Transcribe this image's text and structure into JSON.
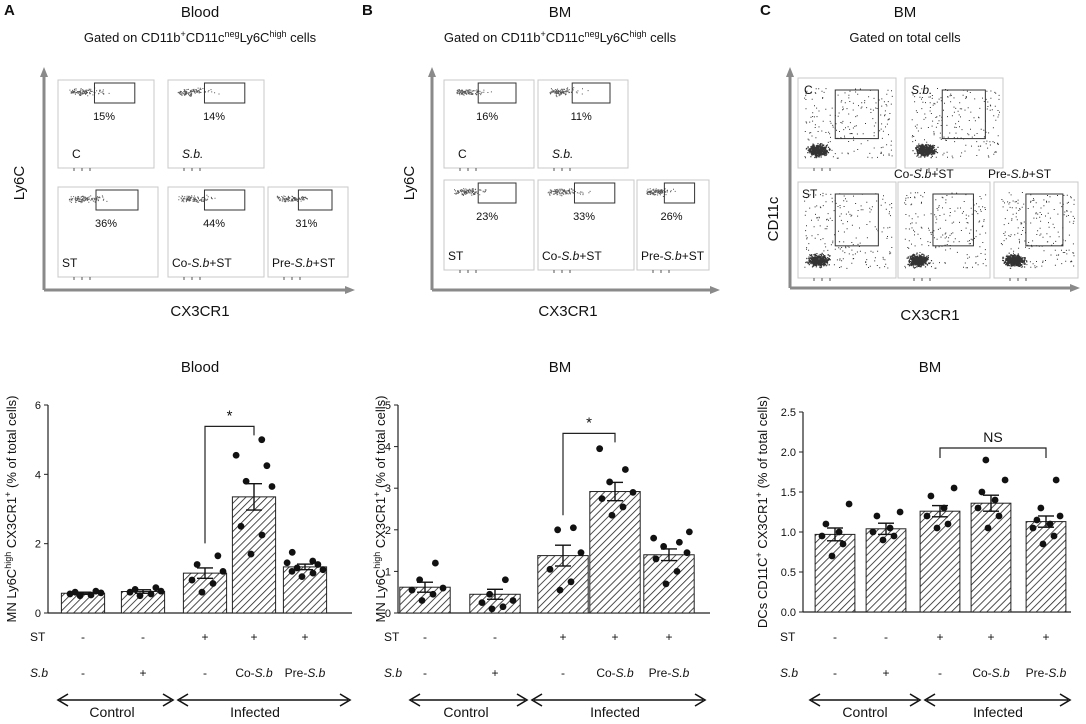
{
  "figure": {
    "panels": [
      {
        "letter": "A",
        "tissue": "Blood",
        "gating": {
          "pre": "Gated on CD11b",
          "sup1": "+",
          "mid": "CD11c",
          "sup2": "neg",
          "mid2": "Ly6C",
          "sup3": "high",
          "post": " cells"
        },
        "y_marker": "Ly6C",
        "x_marker": "CX3CR1",
        "plots": [
          {
            "label": "C",
            "label_style": "normal",
            "pct": "15%"
          },
          {
            "label": "S.b.",
            "label_style": "italic",
            "pct": "14%"
          },
          {
            "label": "ST",
            "label_style": "normal",
            "pct": "36%"
          },
          {
            "label_parts": [
              "Co-",
              "S.b",
              "+ST"
            ],
            "pct": "44%"
          },
          {
            "label_parts": [
              "Pre-",
              "S.b",
              "+ST"
            ],
            "pct": "31%"
          }
        ]
      },
      {
        "letter": "B",
        "tissue": "BM",
        "gating": {
          "pre": "Gated on CD11b",
          "sup1": "+",
          "mid": "CD11c",
          "sup2": "neg",
          "mid2": "Ly6C",
          "sup3": "high",
          "post": " cells"
        },
        "y_marker": "Ly6C",
        "x_marker": "CX3CR1",
        "plots": [
          {
            "label": "C",
            "label_style": "normal",
            "pct": "16%"
          },
          {
            "label": "S.b.",
            "label_style": "italic",
            "pct": "11%"
          },
          {
            "label": "ST",
            "label_style": "normal",
            "pct": "23%"
          },
          {
            "label_parts": [
              "Co-",
              "S.b",
              "+ST"
            ],
            "pct": "33%"
          },
          {
            "label_parts": [
              "Pre-",
              "S.b",
              "+ST"
            ],
            "pct": "26%"
          }
        ]
      },
      {
        "letter": "C",
        "tissue": "BM",
        "gating_plain": "Gated on total cells",
        "y_marker": "CD11c",
        "x_marker": "CX3CR1",
        "plots": [
          {
            "label": "C",
            "label_style": "normal",
            "pct": ""
          },
          {
            "label": "S.b.",
            "label_style": "italic",
            "pct": ""
          },
          {
            "label": "ST",
            "label_style": "normal",
            "pct": ""
          },
          {
            "label_parts": [
              "Co-",
              "S.b",
              "+ST"
            ],
            "pct": ""
          },
          {
            "label_parts": [
              "Pre-",
              "S.b",
              "+ST"
            ],
            "pct": ""
          }
        ]
      }
    ],
    "conditions": {
      "st_label": "ST",
      "sb_label": "S.b",
      "st": [
        "-",
        "-",
        "+",
        "+",
        "+"
      ],
      "sb_parts": [
        [
          "-"
        ],
        [
          "+"
        ],
        [
          "-"
        ],
        [
          "Co-",
          "S.b"
        ],
        [
          "Pre-",
          "S.b"
        ]
      ],
      "control": "Control",
      "infected": "Infected"
    }
  },
  "chart_data": [
    {
      "type": "bar",
      "title": "Blood",
      "ylabel_parts": [
        "MN Ly6C",
        "high",
        " CX3CR1",
        "+",
        " (% of total  cells)"
      ],
      "ylim": [
        0,
        6
      ],
      "yticks": [
        0,
        2,
        4,
        6
      ],
      "ytick_labels": [
        "0",
        "2",
        "4",
        "6"
      ],
      "categories": [
        "C",
        "S.b",
        "ST",
        "Co-S.b+ST",
        "Pre-S.b+ST"
      ],
      "values": [
        0.57,
        0.62,
        1.15,
        3.35,
        1.33
      ],
      "errors": [
        0.03,
        0.05,
        0.15,
        0.38,
        0.08
      ],
      "points": [
        [
          0.5,
          0.52,
          0.55,
          0.58,
          0.6,
          0.63
        ],
        [
          0.5,
          0.55,
          0.6,
          0.63,
          0.68,
          0.73
        ],
        [
          0.6,
          0.85,
          0.95,
          1.2,
          1.4,
          1.65
        ],
        [
          1.7,
          2.25,
          2.5,
          3.65,
          3.8,
          4.25,
          4.55,
          5.0
        ],
        [
          1.05,
          1.15,
          1.2,
          1.25,
          1.3,
          1.4,
          1.45,
          1.5,
          1.75
        ]
      ],
      "significance": [
        {
          "from": 2,
          "to": 3,
          "label": "*"
        }
      ]
    },
    {
      "type": "bar",
      "title": "BM",
      "ylabel_parts": [
        "MN Ly6C",
        "high",
        " CX3CR1",
        "+",
        " (% of total  cells)"
      ],
      "ylim": [
        0,
        5
      ],
      "yticks": [
        0,
        1,
        2,
        3,
        4,
        5
      ],
      "ytick_labels": [
        "0",
        "1",
        "2",
        "3",
        "4",
        "5"
      ],
      "categories": [
        "C",
        "S.b",
        "ST",
        "Co-S.b+ST",
        "Pre-S.b+ST"
      ],
      "values": [
        0.62,
        0.45,
        1.38,
        2.92,
        1.4
      ],
      "errors": [
        0.12,
        0.12,
        0.25,
        0.22,
        0.14
      ],
      "points": [
        [
          0.3,
          0.45,
          0.55,
          0.6,
          0.8,
          1.2
        ],
        [
          0.1,
          0.15,
          0.25,
          0.3,
          0.45,
          0.8
        ],
        [
          0.55,
          0.75,
          1.05,
          1.45,
          2.0,
          2.05
        ],
        [
          2.35,
          2.55,
          2.75,
          2.9,
          3.15,
          3.45,
          3.95
        ],
        [
          0.7,
          1.0,
          1.3,
          1.45,
          1.6,
          1.7,
          1.8,
          1.95
        ]
      ],
      "significance": [
        {
          "from": 2,
          "to": 3,
          "label": "*"
        }
      ]
    },
    {
      "type": "bar",
      "title": "BM",
      "ylabel_parts": [
        "DCs CD11C",
        "+",
        " CX3CR1",
        "+",
        " (% of total  cells)"
      ],
      "ylim": [
        0,
        2.5
      ],
      "yticks": [
        0,
        0.5,
        1.0,
        1.5,
        2.0,
        2.5
      ],
      "ytick_labels": [
        "0.0",
        "0.5",
        "1.0",
        "1.5",
        "2.0",
        "2.5"
      ],
      "categories": [
        "C",
        "S.b",
        "ST",
        "Co-S.b+ST",
        "Pre-S.b+ST"
      ],
      "values": [
        0.97,
        1.04,
        1.26,
        1.36,
        1.13
      ],
      "errors": [
        0.08,
        0.07,
        0.07,
        0.1,
        0.07
      ],
      "points": [
        [
          0.7,
          0.85,
          0.95,
          1.0,
          1.1,
          1.35
        ],
        [
          0.9,
          0.95,
          1.0,
          1.05,
          1.2,
          1.25
        ],
        [
          1.05,
          1.1,
          1.2,
          1.3,
          1.45,
          1.55
        ],
        [
          1.05,
          1.2,
          1.3,
          1.4,
          1.5,
          1.65,
          1.9
        ],
        [
          0.85,
          0.95,
          1.05,
          1.1,
          1.15,
          1.2,
          1.3,
          1.65
        ]
      ],
      "significance": [
        {
          "from": 2,
          "to": 4,
          "label": "NS"
        }
      ]
    }
  ]
}
